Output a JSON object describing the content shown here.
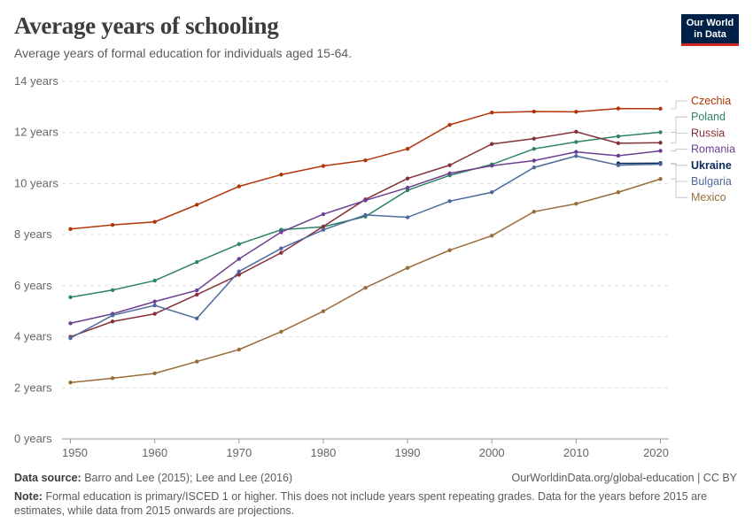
{
  "header": {
    "title": "Average years of schooling",
    "subtitle": "Average years of formal education for individuals aged 15-64.",
    "logo_line1": "Our World",
    "logo_line2": "in Data"
  },
  "footer": {
    "source_label": "Data source:",
    "source_text": "Barro and Lee (2015); Lee and Lee (2016)",
    "credit": "OurWorldinData.org/global-education | CC BY",
    "note_label": "Note:",
    "note_text": "Formal education is primary/ISCED 1 or higher. This does not include years spent repeating grades. Data for the years before 2015 are estimates, while data from 2015 onwards are projections."
  },
  "chart_data": {
    "type": "line",
    "title": "Average years of schooling",
    "subtitle": "Average years of formal education for individuals aged 15-64.",
    "xlabel": "",
    "ylabel": "",
    "xlim": [
      1949,
      2021
    ],
    "ylim": [
      0,
      14
    ],
    "x_ticks": [
      1950,
      1960,
      1970,
      1980,
      1990,
      2000,
      2010,
      2020
    ],
    "y_ticks": [
      0,
      2,
      4,
      6,
      8,
      10,
      12,
      14
    ],
    "y_tick_suffix": " years",
    "grid": true,
    "legend_placement": "right (inline labels)",
    "x": [
      1950,
      1955,
      1960,
      1965,
      1970,
      1975,
      1980,
      1985,
      1990,
      1995,
      2000,
      2005,
      2010,
      2015,
      2020
    ],
    "series": [
      {
        "name": "Czechia",
        "color": "#b13507",
        "values": [
          8.22,
          8.38,
          8.5,
          9.17,
          9.89,
          10.35,
          10.69,
          10.91,
          11.36,
          12.3,
          12.78,
          12.82,
          12.81,
          12.94,
          12.93
        ]
      },
      {
        "name": "Poland",
        "color": "#2c8465",
        "values": [
          5.55,
          5.83,
          6.2,
          6.93,
          7.63,
          8.19,
          8.31,
          8.71,
          9.74,
          10.32,
          10.75,
          11.36,
          11.63,
          11.85,
          12.01
        ]
      },
      {
        "name": "Russia",
        "color": "#883039",
        "values": [
          4.0,
          4.6,
          4.9,
          5.65,
          6.43,
          7.29,
          8.32,
          9.38,
          10.2,
          10.72,
          11.55,
          11.76,
          12.03,
          11.58,
          11.6
        ]
      },
      {
        "name": "Romania",
        "color": "#6d3e91",
        "values": [
          4.53,
          4.9,
          5.38,
          5.82,
          7.05,
          8.1,
          8.8,
          9.34,
          9.84,
          10.4,
          10.7,
          10.9,
          11.24,
          11.09,
          11.28
        ]
      },
      {
        "name": "Ukraine",
        "color": "#0b2c5b",
        "values": [
          null,
          null,
          null,
          null,
          null,
          null,
          null,
          null,
          null,
          null,
          null,
          null,
          null,
          10.79,
          10.8
        ]
      },
      {
        "name": "Bulgaria",
        "color": "#4c6a9c",
        "values": [
          3.95,
          4.84,
          5.23,
          4.72,
          6.56,
          7.46,
          8.19,
          8.77,
          8.68,
          9.31,
          9.66,
          10.63,
          11.08,
          10.72,
          10.76
        ]
      },
      {
        "name": "Mexico",
        "color": "#996d39",
        "values": [
          2.21,
          2.38,
          2.57,
          3.03,
          3.5,
          4.2,
          5.0,
          5.92,
          6.7,
          7.39,
          7.96,
          8.9,
          9.21,
          9.66,
          10.18
        ]
      }
    ]
  }
}
